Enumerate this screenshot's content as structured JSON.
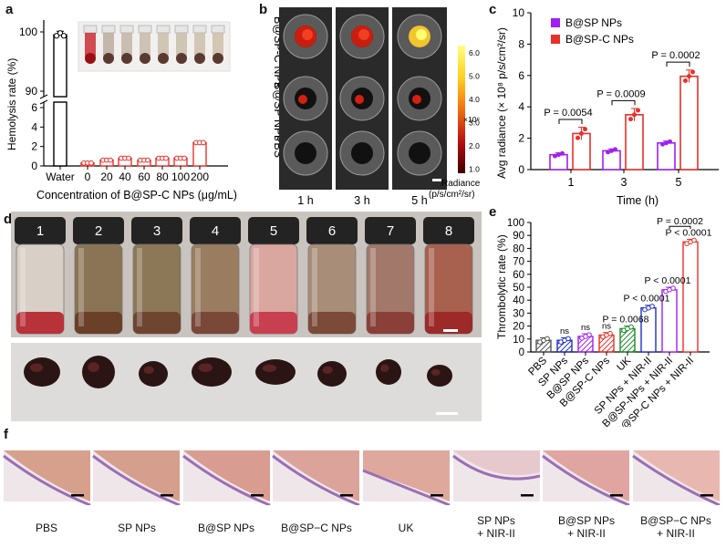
{
  "panel_letters": [
    "a",
    "b",
    "c",
    "d",
    "e",
    "f"
  ],
  "colors": {
    "red": "#e8302a",
    "purple": "#a020f0",
    "blue": "#2030c8",
    "green": "#1f8a2c",
    "gray": "#555555",
    "redfill": "#f4a9a4",
    "heat": "#d42010"
  },
  "chart_data": [
    {
      "id": "a",
      "type": "bar",
      "title": "",
      "xlabel": "Concentration of B@SP-C NPs (μg/mL)",
      "ylabel": "Hemolysis rate (%)",
      "categories": [
        "Water",
        "0",
        "20",
        "40",
        "60",
        "80",
        "100",
        "200"
      ],
      "values": [
        99.5,
        0.3,
        0.6,
        0.8,
        0.6,
        0.8,
        0.8,
        2.4
      ],
      "yticks": [
        "0",
        "2",
        "4",
        "6",
        "90",
        "100"
      ],
      "ylim_low": [
        0,
        6
      ],
      "ylim_high": [
        90,
        102
      ]
    },
    {
      "id": "c",
      "type": "bar",
      "xlabel": "Time (h)",
      "ylabel": "Avg radiance (× 10⁸ p/s/cm²/sr)",
      "categories": [
        "1",
        "3",
        "5"
      ],
      "series": [
        {
          "name": "B@SP NPs",
          "values": [
            0.95,
            1.2,
            1.7
          ],
          "color": "#a020f0"
        },
        {
          "name": "B@SP-C NPs",
          "values": [
            2.3,
            3.5,
            5.95
          ],
          "color": "#e8302a"
        }
      ],
      "pvalues": [
        "P = 0.0054",
        "P = 0.0009",
        "P = 0.0002"
      ],
      "ylim": [
        0,
        10
      ],
      "yticks": [
        "0",
        "2",
        "4",
        "6",
        "8",
        "10"
      ],
      "legend": "top-left"
    },
    {
      "id": "e",
      "type": "bar",
      "xlabel": "",
      "ylabel": "Thrombolytic rate (%)",
      "categories": [
        "PBS",
        "SP NPs",
        "B@SP NPs",
        "B@SP-C NPs",
        "UK",
        "SP NPs + NIR-II",
        "B@SP-NPs + NIR-II",
        "B@SP-C NPs + NIR-II"
      ],
      "values": [
        9,
        9,
        12,
        13,
        18,
        34,
        48,
        85
      ],
      "annotations": [
        "",
        "ns",
        "ns",
        "ns",
        "P = 0.0068",
        "P < 0.0001",
        "P < 0.0001",
        "P < 0.0001"
      ],
      "top_annotation": "P = 0.0002",
      "ylim": [
        0,
        100
      ],
      "yticks": [
        "0",
        "10",
        "20",
        "30",
        "40",
        "50",
        "60",
        "70",
        "80",
        "90",
        "100"
      ]
    }
  ],
  "panel_b": {
    "timepoints": [
      "1 h",
      "3 h",
      "5 h"
    ],
    "rows": [
      "B@SP-C NPs",
      "B@SP NPs",
      "PBS"
    ],
    "colorbar_ticks": [
      "6.0",
      "5.0",
      "4.0",
      "3.0",
      "2.0",
      "1.0"
    ],
    "colorbar_unit": "×10⁸",
    "colorbar_label_1": "Radiance",
    "colorbar_label_2": "(p/s/cm²/sr)"
  },
  "panel_d": {
    "vial_numbers": [
      "1",
      "2",
      "3",
      "4",
      "5",
      "6",
      "7",
      "8"
    ]
  },
  "panel_f": {
    "captions": [
      {
        "line1": "PBS",
        "line2": ""
      },
      {
        "line1": "SP NPs",
        "line2": ""
      },
      {
        "line1": "B@SP NPs",
        "line2": ""
      },
      {
        "line1": "B@SP−C NPs",
        "line2": ""
      },
      {
        "line1": "UK",
        "line2": ""
      },
      {
        "line1": "SP NPs",
        "line2": "+ NIR-II"
      },
      {
        "line1": "B@SP NPs",
        "line2": "+ NIR-II"
      },
      {
        "line1": "B@SP−C NPs",
        "line2": "+ NIR-II"
      }
    ]
  }
}
